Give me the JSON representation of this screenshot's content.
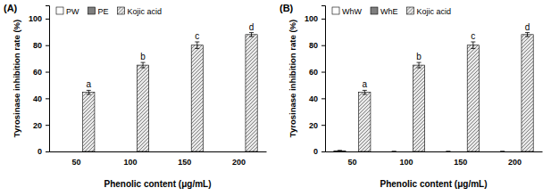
{
  "chart_data": [
    {
      "type": "bar",
      "title": "(A)",
      "x_label": "Phenolic content (μg/mL)",
      "y_label": "Tyrosinase inhibition rate (%)",
      "categories": [
        "50",
        "100",
        "150",
        "200"
      ],
      "ylim": [
        0,
        110
      ],
      "yticks": [
        0,
        20,
        40,
        60,
        80,
        100
      ],
      "legend": "top-left",
      "series": [
        {
          "name": "PW",
          "color": "#ffffff",
          "values": [
            0,
            0,
            0,
            0
          ]
        },
        {
          "name": "PE",
          "color": "#7f7f7f",
          "values": [
            0,
            0,
            0,
            0
          ]
        },
        {
          "name": "Kojic acid",
          "color": "#e8e8e8",
          "values": [
            44.5,
            65,
            80,
            88
          ],
          "errors": [
            1.5,
            2,
            2.5,
            1.5
          ],
          "annotations": [
            "a",
            "b",
            "c",
            "d"
          ]
        }
      ]
    },
    {
      "type": "bar",
      "title": "(B)",
      "x_label": "Phenolic content (μg/mL)",
      "y_label": "Tyrosinase inhibition rate (%)",
      "categories": [
        "50",
        "100",
        "150",
        "200"
      ],
      "ylim": [
        0,
        110
      ],
      "yticks": [
        0,
        20,
        40,
        60,
        80,
        100
      ],
      "legend": "top-left",
      "series": [
        {
          "name": "WhW",
          "color": "#ffffff",
          "values": [
            0.5,
            0,
            0,
            0
          ],
          "errors": [
            0.3,
            0,
            0,
            0
          ]
        },
        {
          "name": "WhE",
          "color": "#7f7f7f",
          "values": [
            0,
            0,
            0,
            0
          ]
        },
        {
          "name": "Kojic acid",
          "color": "#e8e8e8",
          "values": [
            44.5,
            65,
            80,
            88
          ],
          "errors": [
            1.5,
            2,
            2.5,
            1.5
          ],
          "annotations": [
            "a",
            "b",
            "c",
            "d"
          ]
        }
      ]
    }
  ]
}
